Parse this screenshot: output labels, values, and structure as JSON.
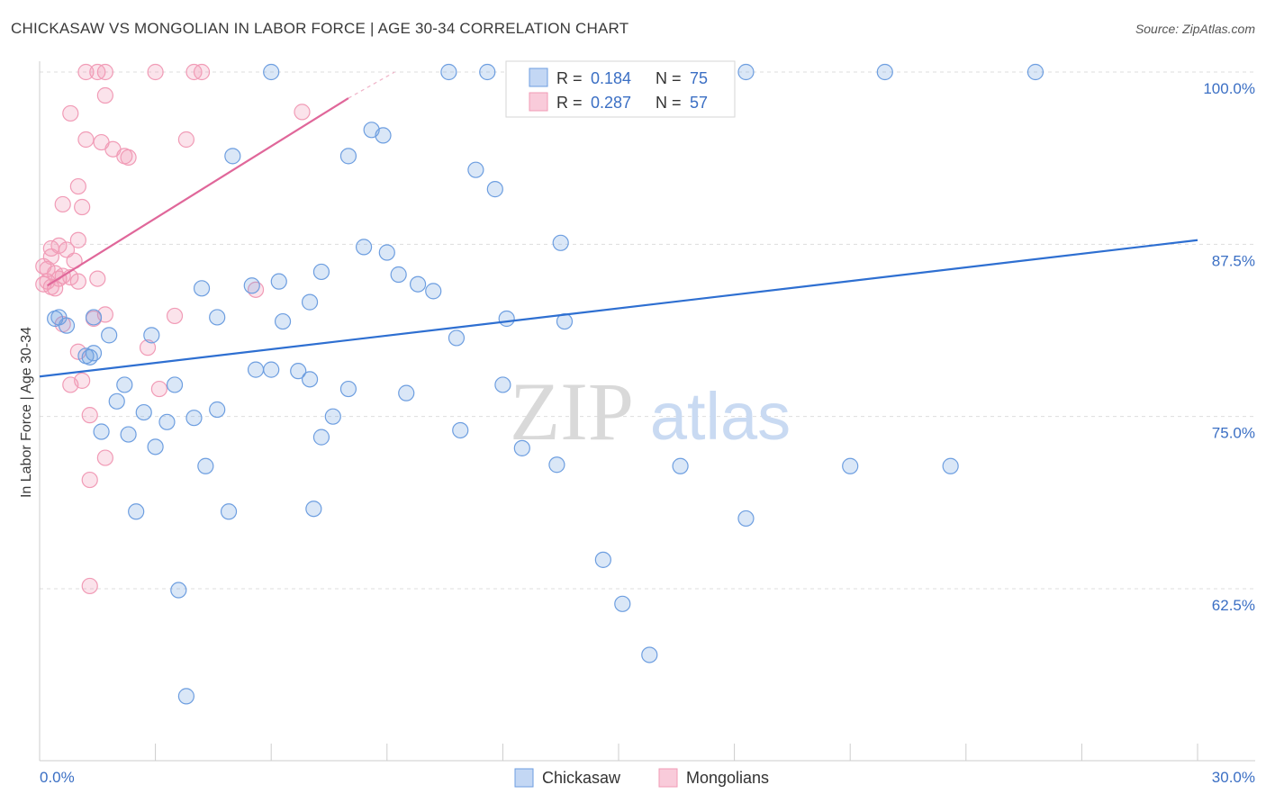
{
  "title": "CHICKASAW VS MONGOLIAN IN LABOR FORCE | AGE 30-34 CORRELATION CHART",
  "source": "Source: ZipAtlas.com",
  "watermark": {
    "zip": "ZIP",
    "atlas": "atlas"
  },
  "legend": {
    "r_label": "R =",
    "n_label": "N =",
    "rows": [
      {
        "r": "0.184",
        "n": "75"
      },
      {
        "r": "0.287",
        "n": "57"
      }
    ]
  },
  "bottom_legend": [
    "Chickasaw",
    "Mongolians"
  ],
  "chart_data": {
    "type": "scatter",
    "title": "CHICKASAW VS MONGOLIAN IN LABOR FORCE | AGE 30-34 CORRELATION CHART",
    "xlabel": "",
    "ylabel": "In Labor Force | Age 30-34",
    "x_unit": "%",
    "y_unit": "%",
    "xlim": [
      0,
      30
    ],
    "ylim": [
      52,
      101.5
    ],
    "x_tick_labels": [
      "0.0%",
      "30.0%"
    ],
    "y_ticks": [
      62.5,
      75.0,
      87.5,
      100.0
    ],
    "y_tick_labels": [
      "62.5%",
      "75.0%",
      "87.5%",
      "100.0%"
    ],
    "grid": "horizontal dashed",
    "legend_position": "top-center",
    "colors": {
      "chickasaw": "#6d9ee0",
      "mongolians": "#f19bb6",
      "chickasaw_line": "#2e6fd1",
      "mongolians_line": "#e0679a"
    },
    "series": [
      {
        "name": "Chickasaw",
        "r": 0.184,
        "n": 75,
        "trend": {
          "x": [
            0,
            30
          ],
          "y": [
            77.9,
            87.8
          ]
        },
        "points": [
          [
            6.0,
            100.0
          ],
          [
            10.6,
            100.0
          ],
          [
            11.6,
            100.0
          ],
          [
            18.3,
            100.0
          ],
          [
            21.9,
            100.0
          ],
          [
            25.8,
            100.0
          ],
          [
            8.6,
            95.8
          ],
          [
            8.9,
            95.4
          ],
          [
            5.0,
            93.9
          ],
          [
            8.0,
            93.9
          ],
          [
            11.3,
            92.9
          ],
          [
            11.8,
            91.5
          ],
          [
            8.4,
            87.3
          ],
          [
            9.0,
            86.9
          ],
          [
            13.5,
            87.6
          ],
          [
            7.3,
            85.5
          ],
          [
            9.3,
            85.3
          ],
          [
            6.2,
            84.8
          ],
          [
            4.2,
            84.3
          ],
          [
            5.5,
            84.5
          ],
          [
            9.8,
            84.6
          ],
          [
            10.2,
            84.1
          ],
          [
            7.0,
            83.3
          ],
          [
            0.4,
            82.1
          ],
          [
            0.5,
            82.2
          ],
          [
            1.4,
            82.2
          ],
          [
            4.6,
            82.2
          ],
          [
            6.3,
            81.9
          ],
          [
            12.1,
            82.1
          ],
          [
            13.6,
            81.9
          ],
          [
            0.7,
            81.6
          ],
          [
            1.8,
            80.9
          ],
          [
            2.9,
            80.9
          ],
          [
            10.8,
            80.7
          ],
          [
            1.2,
            79.4
          ],
          [
            1.4,
            79.6
          ],
          [
            1.3,
            79.3
          ],
          [
            5.6,
            78.4
          ],
          [
            6.0,
            78.4
          ],
          [
            6.7,
            78.3
          ],
          [
            7.0,
            77.7
          ],
          [
            2.2,
            77.3
          ],
          [
            3.5,
            77.3
          ],
          [
            8.0,
            77.0
          ],
          [
            9.5,
            76.7
          ],
          [
            12.0,
            77.3
          ],
          [
            2.0,
            76.1
          ],
          [
            2.7,
            75.3
          ],
          [
            4.6,
            75.5
          ],
          [
            3.3,
            74.6
          ],
          [
            4.0,
            74.9
          ],
          [
            7.6,
            75.0
          ],
          [
            1.6,
            73.9
          ],
          [
            2.3,
            73.7
          ],
          [
            10.9,
            74.0
          ],
          [
            7.3,
            73.5
          ],
          [
            3.0,
            72.8
          ],
          [
            12.5,
            72.7
          ],
          [
            4.3,
            71.4
          ],
          [
            13.4,
            71.5
          ],
          [
            16.6,
            71.4
          ],
          [
            21.0,
            71.4
          ],
          [
            23.6,
            71.4
          ],
          [
            2.5,
            68.1
          ],
          [
            4.9,
            68.1
          ],
          [
            7.1,
            68.3
          ],
          [
            18.3,
            67.6
          ],
          [
            14.6,
            64.6
          ],
          [
            3.6,
            62.4
          ],
          [
            15.1,
            61.4
          ],
          [
            15.8,
            57.7
          ],
          [
            3.8,
            54.7
          ]
        ]
      },
      {
        "name": "Mongolians",
        "r": 0.287,
        "n": 57,
        "trend": {
          "x": [
            0.2,
            8.0
          ],
          "y": [
            84.5,
            98.1
          ]
        },
        "trend_dashed": {
          "x": [
            8.0,
            9.2
          ],
          "y": [
            98.1,
            100.0
          ]
        },
        "points": [
          [
            1.2,
            100.0
          ],
          [
            1.5,
            100.0
          ],
          [
            1.7,
            100.0
          ],
          [
            3.0,
            100.0
          ],
          [
            4.0,
            100.0
          ],
          [
            4.2,
            100.0
          ],
          [
            1.7,
            98.3
          ],
          [
            0.8,
            97.0
          ],
          [
            6.8,
            97.1
          ],
          [
            1.2,
            95.1
          ],
          [
            1.6,
            94.9
          ],
          [
            3.8,
            95.1
          ],
          [
            1.9,
            94.4
          ],
          [
            2.2,
            93.9
          ],
          [
            2.3,
            93.8
          ],
          [
            1.0,
            91.7
          ],
          [
            0.6,
            90.4
          ],
          [
            1.1,
            90.2
          ],
          [
            1.0,
            87.8
          ],
          [
            0.3,
            87.2
          ],
          [
            0.5,
            87.4
          ],
          [
            0.7,
            87.1
          ],
          [
            0.3,
            86.6
          ],
          [
            0.9,
            86.3
          ],
          [
            0.1,
            85.9
          ],
          [
            0.2,
            85.7
          ],
          [
            0.4,
            85.4
          ],
          [
            0.5,
            85.0
          ],
          [
            0.6,
            85.2
          ],
          [
            0.8,
            85.1
          ],
          [
            1.5,
            85.0
          ],
          [
            1.0,
            84.8
          ],
          [
            0.1,
            84.6
          ],
          [
            0.3,
            84.4
          ],
          [
            0.4,
            84.3
          ],
          [
            0.2,
            84.8
          ],
          [
            5.6,
            84.2
          ],
          [
            1.7,
            82.4
          ],
          [
            3.5,
            82.3
          ],
          [
            1.4,
            82.1
          ],
          [
            0.6,
            81.7
          ],
          [
            2.8,
            80.0
          ],
          [
            1.0,
            79.7
          ],
          [
            0.8,
            77.3
          ],
          [
            1.1,
            77.6
          ],
          [
            3.1,
            77.0
          ],
          [
            1.3,
            75.1
          ],
          [
            1.7,
            72.0
          ],
          [
            1.3,
            70.4
          ],
          [
            1.3,
            62.7
          ]
        ]
      }
    ]
  }
}
